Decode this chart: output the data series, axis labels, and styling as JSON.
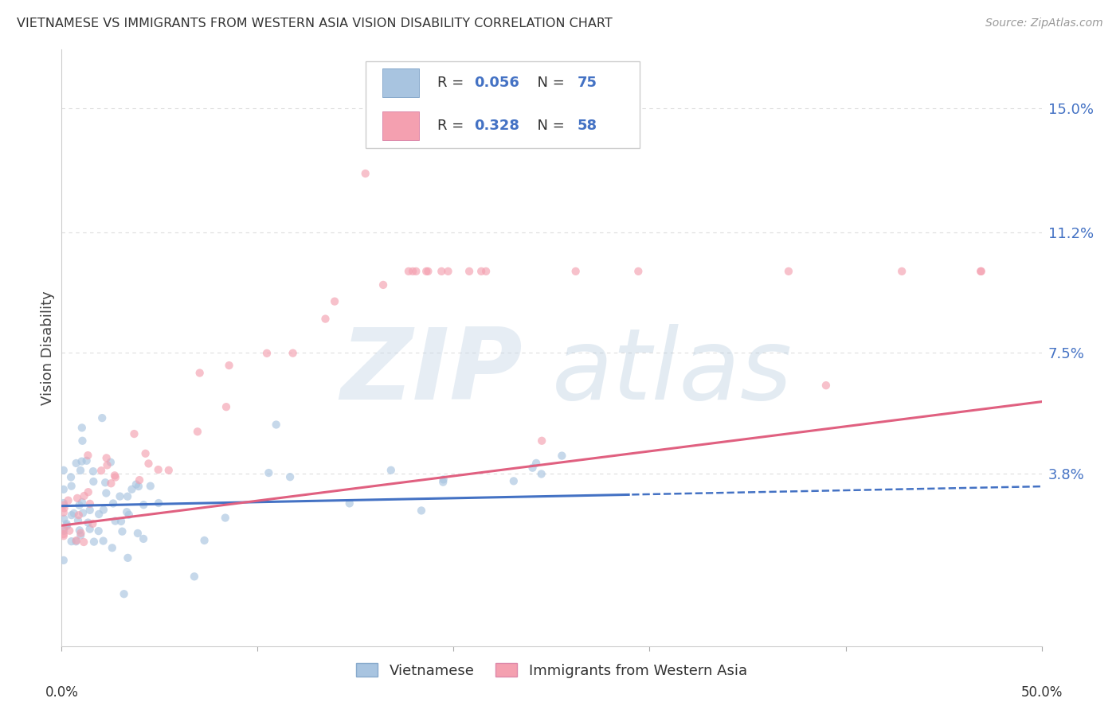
{
  "title": "VIETNAMESE VS IMMIGRANTS FROM WESTERN ASIA VISION DISABILITY CORRELATION CHART",
  "source": "Source: ZipAtlas.com",
  "ylabel": "Vision Disability",
  "ytick_labels": [
    "15.0%",
    "11.2%",
    "7.5%",
    "3.8%"
  ],
  "ytick_values": [
    0.15,
    0.112,
    0.075,
    0.038
  ],
  "xlim": [
    0.0,
    0.5
  ],
  "ylim": [
    -0.015,
    0.168
  ],
  "legend1_r": "0.056",
  "legend1_n": "75",
  "legend2_r": "0.328",
  "legend2_n": "58",
  "color_blue": "#a8c4e0",
  "color_pink": "#f4a0b0",
  "color_blue_line": "#4472c4",
  "color_pink_line": "#e06080",
  "color_blue_label": "#4472c4",
  "color_title": "#333333",
  "scatter_alpha": 0.65,
  "scatter_size": 55,
  "bg_color": "#ffffff",
  "grid_color": "#dddddd",
  "watermark_zip_color": "#c8d8e8",
  "watermark_atlas_color": "#b0c8dc"
}
